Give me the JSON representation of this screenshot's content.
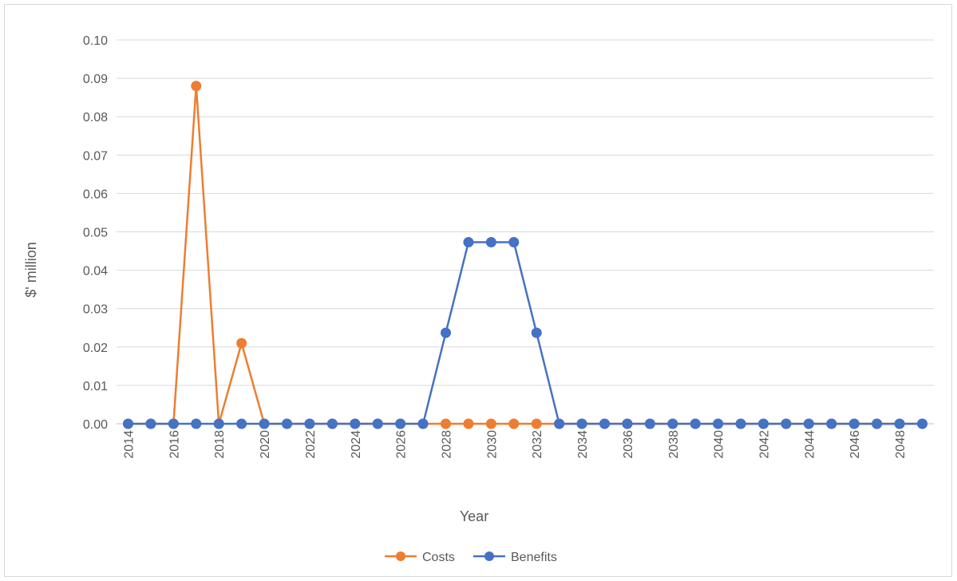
{
  "chart_data": {
    "type": "line",
    "title": "",
    "xlabel": "Year",
    "ylabel": "$' million",
    "x": [
      2014,
      2015,
      2016,
      2017,
      2018,
      2019,
      2020,
      2021,
      2022,
      2023,
      2024,
      2025,
      2026,
      2027,
      2028,
      2029,
      2030,
      2031,
      2032,
      2033,
      2034,
      2035,
      2036,
      2037,
      2038,
      2039,
      2040,
      2041,
      2042,
      2043,
      2044,
      2045,
      2046,
      2047,
      2048,
      2049
    ],
    "x_tick_labels": [
      "2014",
      "2016",
      "2018",
      "2020",
      "2022",
      "2024",
      "2026",
      "2028",
      "2030",
      "2032",
      "2034",
      "2036",
      "2038",
      "2040",
      "2042",
      "2044",
      "2046",
      "2048"
    ],
    "y_tick_labels": [
      "0.00",
      "0.01",
      "0.02",
      "0.03",
      "0.04",
      "0.05",
      "0.06",
      "0.07",
      "0.08",
      "0.09",
      "0.10"
    ],
    "ylim": [
      0,
      0.1
    ],
    "grid": true,
    "legend_position": "bottom",
    "series": [
      {
        "name": "Costs",
        "color": "#ed7d31",
        "values": [
          0,
          0,
          0,
          0.088,
          0,
          0.021,
          0,
          0,
          0,
          0,
          0,
          0,
          0,
          0,
          0,
          0,
          0,
          0,
          0,
          0,
          0,
          0,
          0,
          0,
          0,
          0,
          0,
          0,
          0,
          0,
          0,
          0,
          0,
          0,
          0,
          0
        ]
      },
      {
        "name": "Benefits",
        "color": "#4472c4",
        "values": [
          0,
          0,
          0,
          0,
          0,
          0,
          0,
          0,
          0,
          0,
          0,
          0,
          0,
          0,
          0.0237,
          0.0473,
          0.0473,
          0.0473,
          0.0237,
          0,
          0,
          0,
          0,
          0,
          0,
          0,
          0,
          0,
          0,
          0,
          0,
          0,
          0,
          0,
          0,
          0
        ]
      }
    ]
  }
}
